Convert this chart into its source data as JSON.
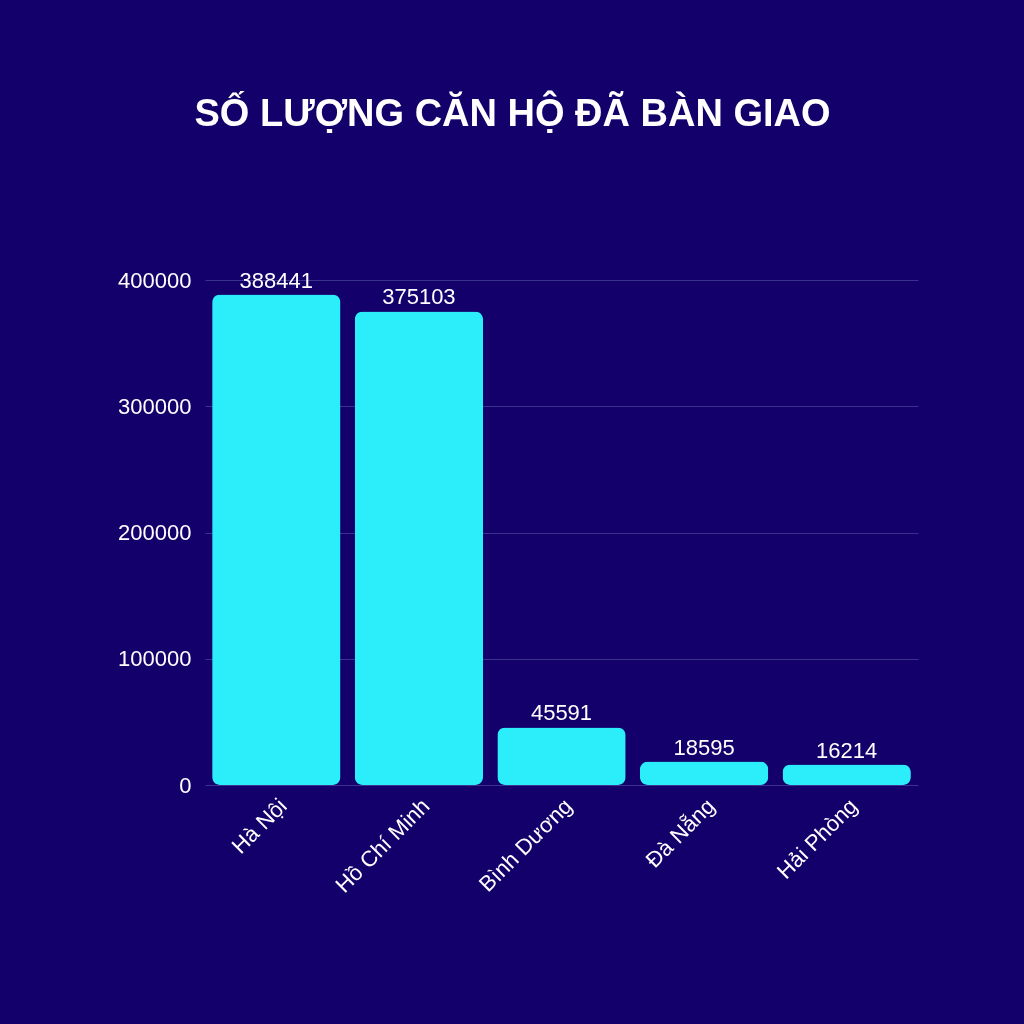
{
  "chart_data": {
    "type": "bar",
    "title": "SỐ LƯỢNG CĂN HỘ ĐÃ BÀN GIAO",
    "categories": [
      "Hà Nội",
      "Hồ Chí Minh",
      "Bình Dương",
      "Đà Nẵng",
      "Hải Phòng"
    ],
    "values": [
      388441,
      375103,
      45591,
      18595,
      16214
    ],
    "color": "#2ceefb",
    "ylim": [
      0,
      400000
    ],
    "yticks": [
      0,
      100000,
      200000,
      300000,
      400000
    ],
    "grid": "y",
    "data_labels": true
  }
}
